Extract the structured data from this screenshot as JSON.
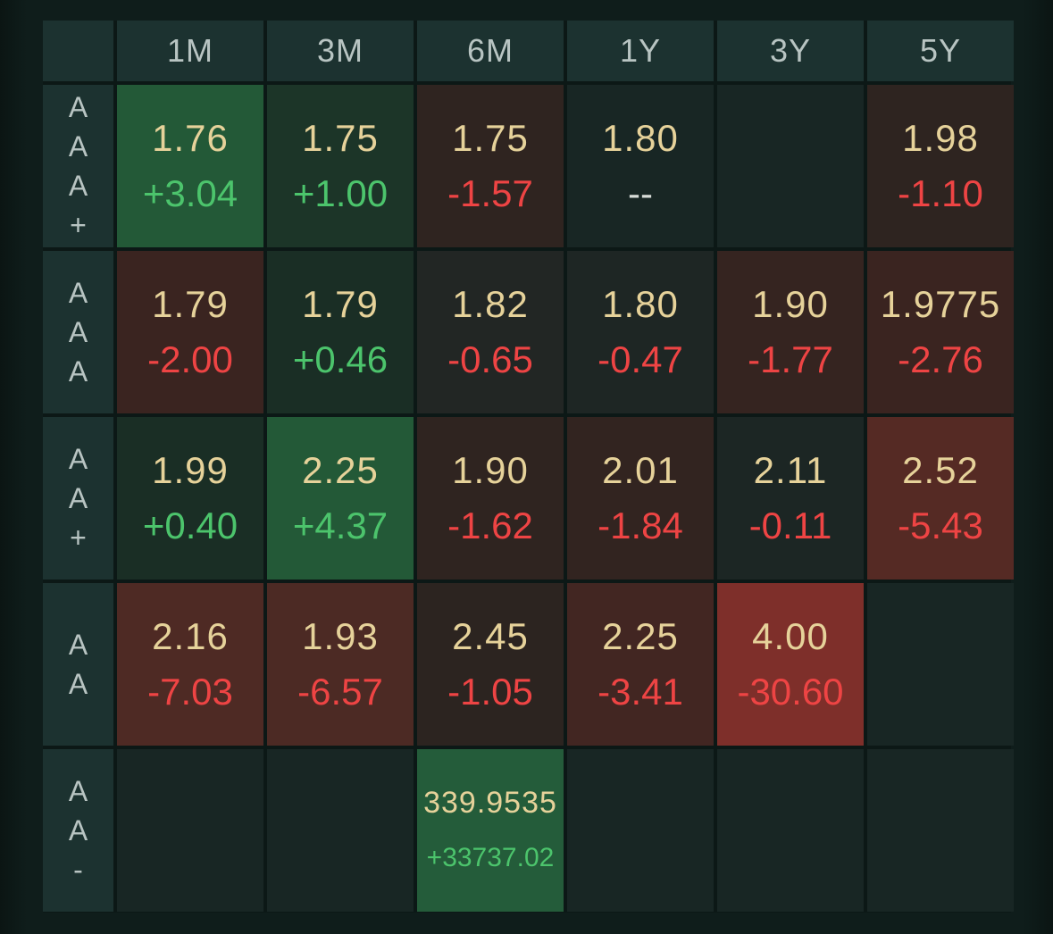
{
  "columns": [
    "1M",
    "3M",
    "6M",
    "1Y",
    "3Y",
    "5Y"
  ],
  "rows": [
    {
      "label": [
        "A",
        "A",
        "A",
        "+"
      ],
      "cells": [
        {
          "price": "1.76",
          "change": "+3.04",
          "dir": "up",
          "bg": "#235937"
        },
        {
          "price": "1.75",
          "change": "+1.00",
          "dir": "up",
          "bg": "#1c3528"
        },
        {
          "price": "1.75",
          "change": "-1.57",
          "dir": "down",
          "bg": "#2f2420"
        },
        {
          "price": "1.80",
          "change": "--",
          "dir": "flat",
          "bg": "#182624"
        },
        {
          "price": "",
          "change": "",
          "dir": "flat",
          "bg": "#182624"
        },
        {
          "price": "1.98",
          "change": "-1.10",
          "dir": "down",
          "bg": "#2e2420"
        }
      ]
    },
    {
      "label": [
        "A",
        "A",
        "A"
      ],
      "cells": [
        {
          "price": "1.79",
          "change": "-2.00",
          "dir": "down",
          "bg": "#3a2420"
        },
        {
          "price": "1.79",
          "change": "+0.46",
          "dir": "up",
          "bg": "#1a2e25"
        },
        {
          "price": "1.82",
          "change": "-0.65",
          "dir": "down",
          "bg": "#222624"
        },
        {
          "price": "1.80",
          "change": "-0.47",
          "dir": "down",
          "bg": "#1e2624"
        },
        {
          "price": "1.90",
          "change": "-1.77",
          "dir": "down",
          "bg": "#352420"
        },
        {
          "price": "1.9775",
          "change": "-2.76",
          "dir": "down",
          "bg": "#3a2420"
        }
      ]
    },
    {
      "label": [
        "A",
        "A",
        "+"
      ],
      "cells": [
        {
          "price": "1.99",
          "change": "+0.40",
          "dir": "up",
          "bg": "#1a2e25"
        },
        {
          "price": "2.25",
          "change": "+4.37",
          "dir": "up",
          "bg": "#235937"
        },
        {
          "price": "1.90",
          "change": "-1.62",
          "dir": "down",
          "bg": "#2f2420"
        },
        {
          "price": "2.01",
          "change": "-1.84",
          "dir": "down",
          "bg": "#322420"
        },
        {
          "price": "2.11",
          "change": "-0.11",
          "dir": "down",
          "bg": "#1c2624"
        },
        {
          "price": "2.52",
          "change": "-5.43",
          "dir": "down",
          "bg": "#552a24"
        }
      ]
    },
    {
      "label": [
        "A",
        "A"
      ],
      "cells": [
        {
          "price": "2.16",
          "change": "-7.03",
          "dir": "down",
          "bg": "#4e2a24"
        },
        {
          "price": "1.93",
          "change": "-6.57",
          "dir": "down",
          "bg": "#4c2a24"
        },
        {
          "price": "2.45",
          "change": "-1.05",
          "dir": "down",
          "bg": "#2c2420"
        },
        {
          "price": "2.25",
          "change": "-3.41",
          "dir": "down",
          "bg": "#422622"
        },
        {
          "price": "4.00",
          "change": "-30.60",
          "dir": "down",
          "bg": "#7e2f2a"
        },
        {
          "price": "",
          "change": "",
          "dir": "flat",
          "bg": "#182624"
        }
      ]
    },
    {
      "label": [
        "A",
        "A",
        "-"
      ],
      "cells": [
        {
          "price": "",
          "change": "",
          "dir": "flat",
          "bg": "#182624"
        },
        {
          "price": "",
          "change": "",
          "dir": "flat",
          "bg": "#182624"
        },
        {
          "price": "339.9535",
          "change": "+33737.02",
          "dir": "up",
          "bg": "#245c3a",
          "small": true
        },
        {
          "price": "",
          "change": "",
          "dir": "flat",
          "bg": "#182624"
        },
        {
          "price": "",
          "change": "",
          "dir": "flat",
          "bg": "#182624"
        },
        {
          "price": "",
          "change": "",
          "dir": "flat",
          "bg": "#182624"
        }
      ]
    }
  ]
}
